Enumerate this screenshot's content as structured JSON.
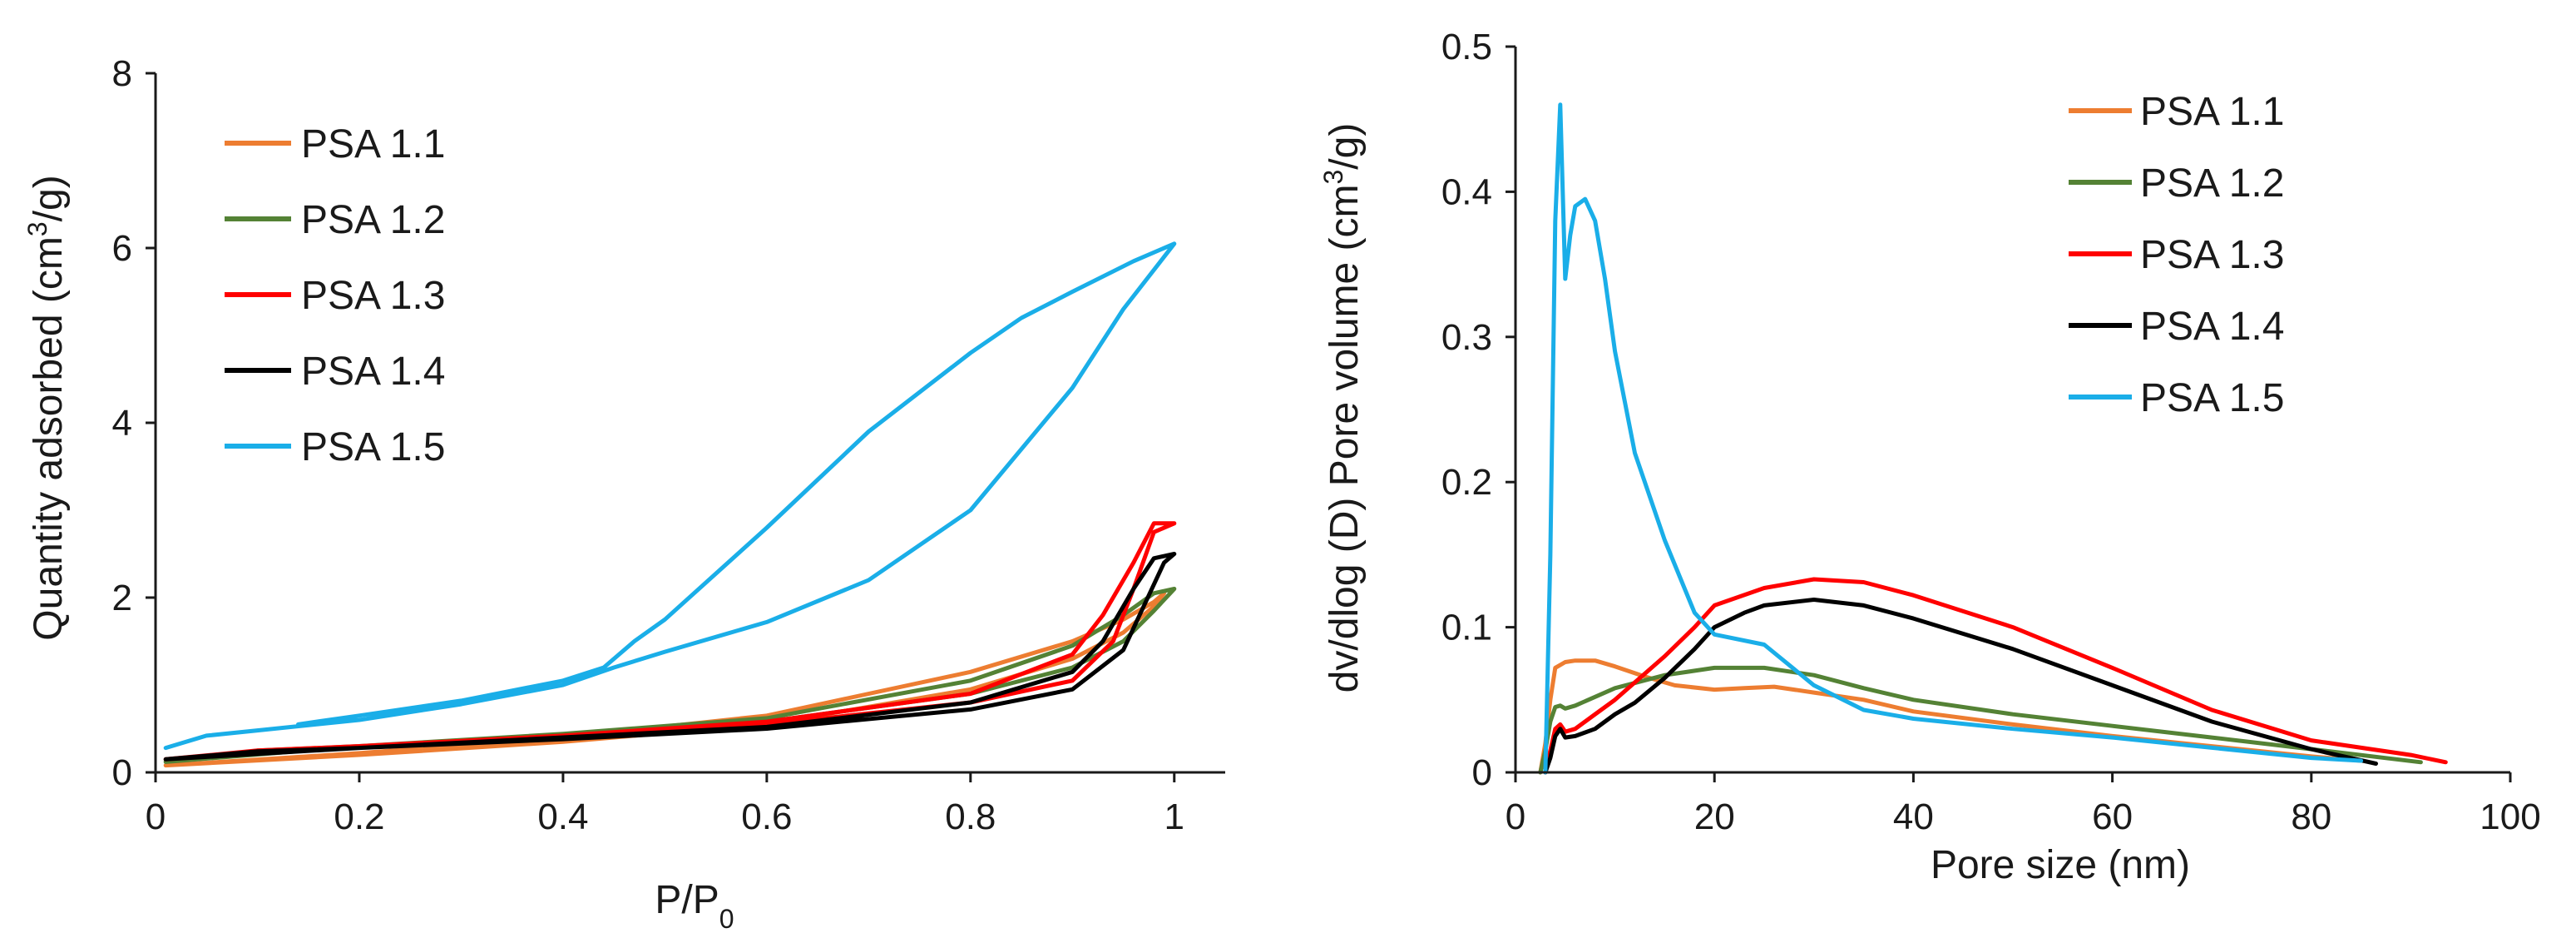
{
  "chart_data": [
    {
      "type": "line",
      "title": "",
      "xlabel": "P/P",
      "xlabel_subscript": "0",
      "ylabel": "Quantity adsorbed (cm",
      "ylabel_superscript": "3",
      "ylabel_suffix": "/g)",
      "xlim": [
        0,
        1.05
      ],
      "ylim": [
        0,
        8
      ],
      "xticks": [
        0,
        0.2,
        0.4,
        0.6,
        0.8,
        1
      ],
      "xtick_labels": [
        "0",
        "0.2",
        "0.4",
        "0.6",
        "0.8",
        "1"
      ],
      "yticks": [
        0,
        2,
        4,
        6,
        8
      ],
      "ytick_labels": [
        "0",
        "2",
        "4",
        "6",
        "8"
      ],
      "legend_position": "top-left",
      "series": [
        {
          "name": "PSA 1.1",
          "color": "#ED7D31",
          "x": [
            0.01,
            0.2,
            0.4,
            0.6,
            0.8,
            0.9,
            0.95,
            0.98,
            0.99,
            0.98,
            0.95,
            0.9,
            0.8,
            0.6,
            0.4,
            0.2,
            0.01
          ],
          "y": [
            0.08,
            0.2,
            0.35,
            0.55,
            0.95,
            1.3,
            1.6,
            1.9,
            2.05,
            1.95,
            1.75,
            1.5,
            1.15,
            0.65,
            0.4,
            0.22,
            0.08
          ]
        },
        {
          "name": "PSA 1.2",
          "color": "#548235",
          "x": [
            0.01,
            0.1,
            0.2,
            0.4,
            0.6,
            0.8,
            0.9,
            0.95,
            0.98,
            1.0,
            0.98,
            0.95,
            0.9,
            0.8,
            0.6,
            0.4,
            0.2,
            0.01
          ],
          "y": [
            0.12,
            0.25,
            0.3,
            0.42,
            0.58,
            0.9,
            1.2,
            1.5,
            1.85,
            2.1,
            2.05,
            1.8,
            1.45,
            1.05,
            0.62,
            0.44,
            0.3,
            0.12
          ]
        },
        {
          "name": "PSA 1.3",
          "color": "#FF0000",
          "x": [
            0.01,
            0.1,
            0.2,
            0.4,
            0.6,
            0.8,
            0.9,
            0.94,
            0.96,
            0.98,
            1.0,
            0.98,
            0.96,
            0.93,
            0.9,
            0.8,
            0.6,
            0.4,
            0.2,
            0.01
          ],
          "y": [
            0.15,
            0.25,
            0.3,
            0.4,
            0.55,
            0.8,
            1.05,
            1.5,
            2.1,
            2.75,
            2.85,
            2.85,
            2.4,
            1.8,
            1.35,
            0.9,
            0.58,
            0.42,
            0.3,
            0.15
          ]
        },
        {
          "name": "PSA 1.4",
          "color": "#000000",
          "x": [
            0.01,
            0.1,
            0.2,
            0.4,
            0.6,
            0.8,
            0.9,
            0.95,
            0.97,
            0.99,
            1.0,
            0.98,
            0.96,
            0.93,
            0.9,
            0.8,
            0.6,
            0.4,
            0.2,
            0.01
          ],
          "y": [
            0.15,
            0.24,
            0.28,
            0.38,
            0.5,
            0.72,
            0.95,
            1.4,
            1.9,
            2.4,
            2.5,
            2.45,
            2.1,
            1.5,
            1.15,
            0.8,
            0.52,
            0.4,
            0.28,
            0.15
          ]
        },
        {
          "name": "PSA 1.5",
          "color": "#1AAEE8",
          "x": [
            0.01,
            0.05,
            0.1,
            0.2,
            0.3,
            0.4,
            0.45,
            0.5,
            0.6,
            0.7,
            0.8,
            0.9,
            0.95,
            1.0,
            0.96,
            0.9,
            0.85,
            0.8,
            0.7,
            0.6,
            0.5,
            0.47,
            0.44,
            0.4,
            0.3,
            0.2,
            0.14
          ],
          "y": [
            0.28,
            0.42,
            0.48,
            0.6,
            0.78,
            1.0,
            1.2,
            1.38,
            1.72,
            2.2,
            3.0,
            4.4,
            5.3,
            6.05,
            5.85,
            5.5,
            5.2,
            4.8,
            3.9,
            2.8,
            1.75,
            1.5,
            1.2,
            1.05,
            0.82,
            0.65,
            0.55
          ]
        }
      ]
    },
    {
      "type": "line",
      "title": "",
      "xlabel": "Pore size (nm)",
      "ylabel": "dv/dlog (D) Pore volume (cm",
      "ylabel_superscript": "3",
      "ylabel_suffix": "/g)",
      "xlim": [
        0,
        100
      ],
      "ylim": [
        0,
        0.5
      ],
      "xticks": [
        0,
        20,
        40,
        60,
        80,
        100
      ],
      "xtick_labels": [
        "0",
        "20",
        "40",
        "60",
        "80",
        "100"
      ],
      "yticks": [
        0,
        0.1,
        0.2,
        0.3,
        0.4,
        0.5
      ],
      "ytick_labels": [
        "0",
        "0.1",
        "0.2",
        "0.3",
        "0.4",
        "0.5"
      ],
      "legend_position": "top-right",
      "series": [
        {
          "name": "PSA 1.1",
          "color": "#ED7D31",
          "x": [
            2.5,
            3.0,
            3.5,
            4.0,
            5.0,
            6.0,
            8.0,
            10,
            13,
            16,
            20,
            23,
            26,
            30,
            35,
            40,
            50,
            60,
            70,
            80,
            85
          ],
          "y": [
            0,
            0.02,
            0.05,
            0.072,
            0.076,
            0.077,
            0.077,
            0.073,
            0.066,
            0.06,
            0.057,
            0.058,
            0.059,
            0.055,
            0.05,
            0.042,
            0.033,
            0.025,
            0.018,
            0.011,
            0.008
          ]
        },
        {
          "name": "PSA 1.2",
          "color": "#548235",
          "x": [
            2.5,
            3.0,
            3.5,
            4.0,
            4.5,
            5.0,
            6.0,
            8.0,
            10,
            15,
            20,
            25,
            30,
            35,
            40,
            50,
            60,
            70,
            80,
            91
          ],
          "y": [
            0,
            0.015,
            0.035,
            0.045,
            0.046,
            0.044,
            0.046,
            0.052,
            0.058,
            0.067,
            0.072,
            0.072,
            0.067,
            0.058,
            0.05,
            0.04,
            0.032,
            0.024,
            0.016,
            0.007
          ]
        },
        {
          "name": "PSA 1.3",
          "color": "#FF0000",
          "x": [
            3.0,
            3.5,
            4.0,
            4.5,
            5.0,
            6.0,
            8.0,
            10,
            12,
            15,
            18,
            20,
            25,
            30,
            35,
            40,
            50,
            60,
            70,
            80,
            90,
            93.5
          ],
          "y": [
            0,
            0.015,
            0.03,
            0.033,
            0.028,
            0.03,
            0.04,
            0.05,
            0.062,
            0.08,
            0.1,
            0.115,
            0.127,
            0.133,
            0.131,
            0.122,
            0.1,
            0.072,
            0.043,
            0.022,
            0.012,
            0.007
          ]
        },
        {
          "name": "PSA 1.4",
          "color": "#000000",
          "x": [
            3.0,
            3.5,
            4.0,
            4.5,
            5.0,
            6.0,
            8.0,
            10,
            12,
            15,
            18,
            20,
            23,
            25,
            30,
            35,
            40,
            50,
            60,
            70,
            80,
            86.5
          ],
          "y": [
            0,
            0.01,
            0.025,
            0.03,
            0.024,
            0.025,
            0.03,
            0.04,
            0.048,
            0.065,
            0.085,
            0.1,
            0.11,
            0.115,
            0.119,
            0.115,
            0.106,
            0.085,
            0.06,
            0.035,
            0.016,
            0.006
          ]
        },
        {
          "name": "PSA 1.5",
          "color": "#1AAEE8",
          "x": [
            3.0,
            3.5,
            4.0,
            4.5,
            5.0,
            5.5,
            6.0,
            7.0,
            8.0,
            9.0,
            10,
            12,
            15,
            18,
            20,
            25,
            30,
            35,
            40,
            50,
            60,
            70,
            80,
            85
          ],
          "y": [
            0,
            0.15,
            0.38,
            0.46,
            0.34,
            0.37,
            0.39,
            0.395,
            0.38,
            0.34,
            0.29,
            0.22,
            0.16,
            0.11,
            0.095,
            0.088,
            0.06,
            0.043,
            0.037,
            0.03,
            0.024,
            0.017,
            0.01,
            0.008
          ]
        }
      ]
    }
  ]
}
